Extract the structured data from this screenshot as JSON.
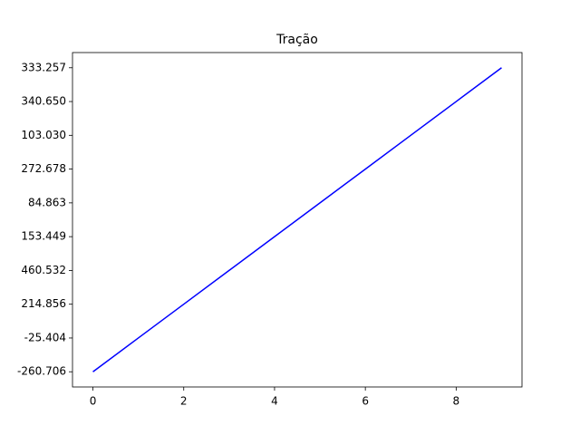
{
  "chart_data": {
    "type": "line",
    "title": "Tração",
    "x": [
      0,
      1,
      2,
      3,
      4,
      5,
      6,
      7,
      8,
      9
    ],
    "values": [
      "-260.706",
      "-25.404",
      "214.856",
      "460.532",
      "153.449",
      "84.863",
      "272.678",
      "103.030",
      "340.650",
      "333.257"
    ],
    "color": "#0000ff",
    "xlim": [
      -0.45,
      9.45
    ],
    "xticks": [
      0,
      2,
      4,
      6,
      8
    ]
  }
}
